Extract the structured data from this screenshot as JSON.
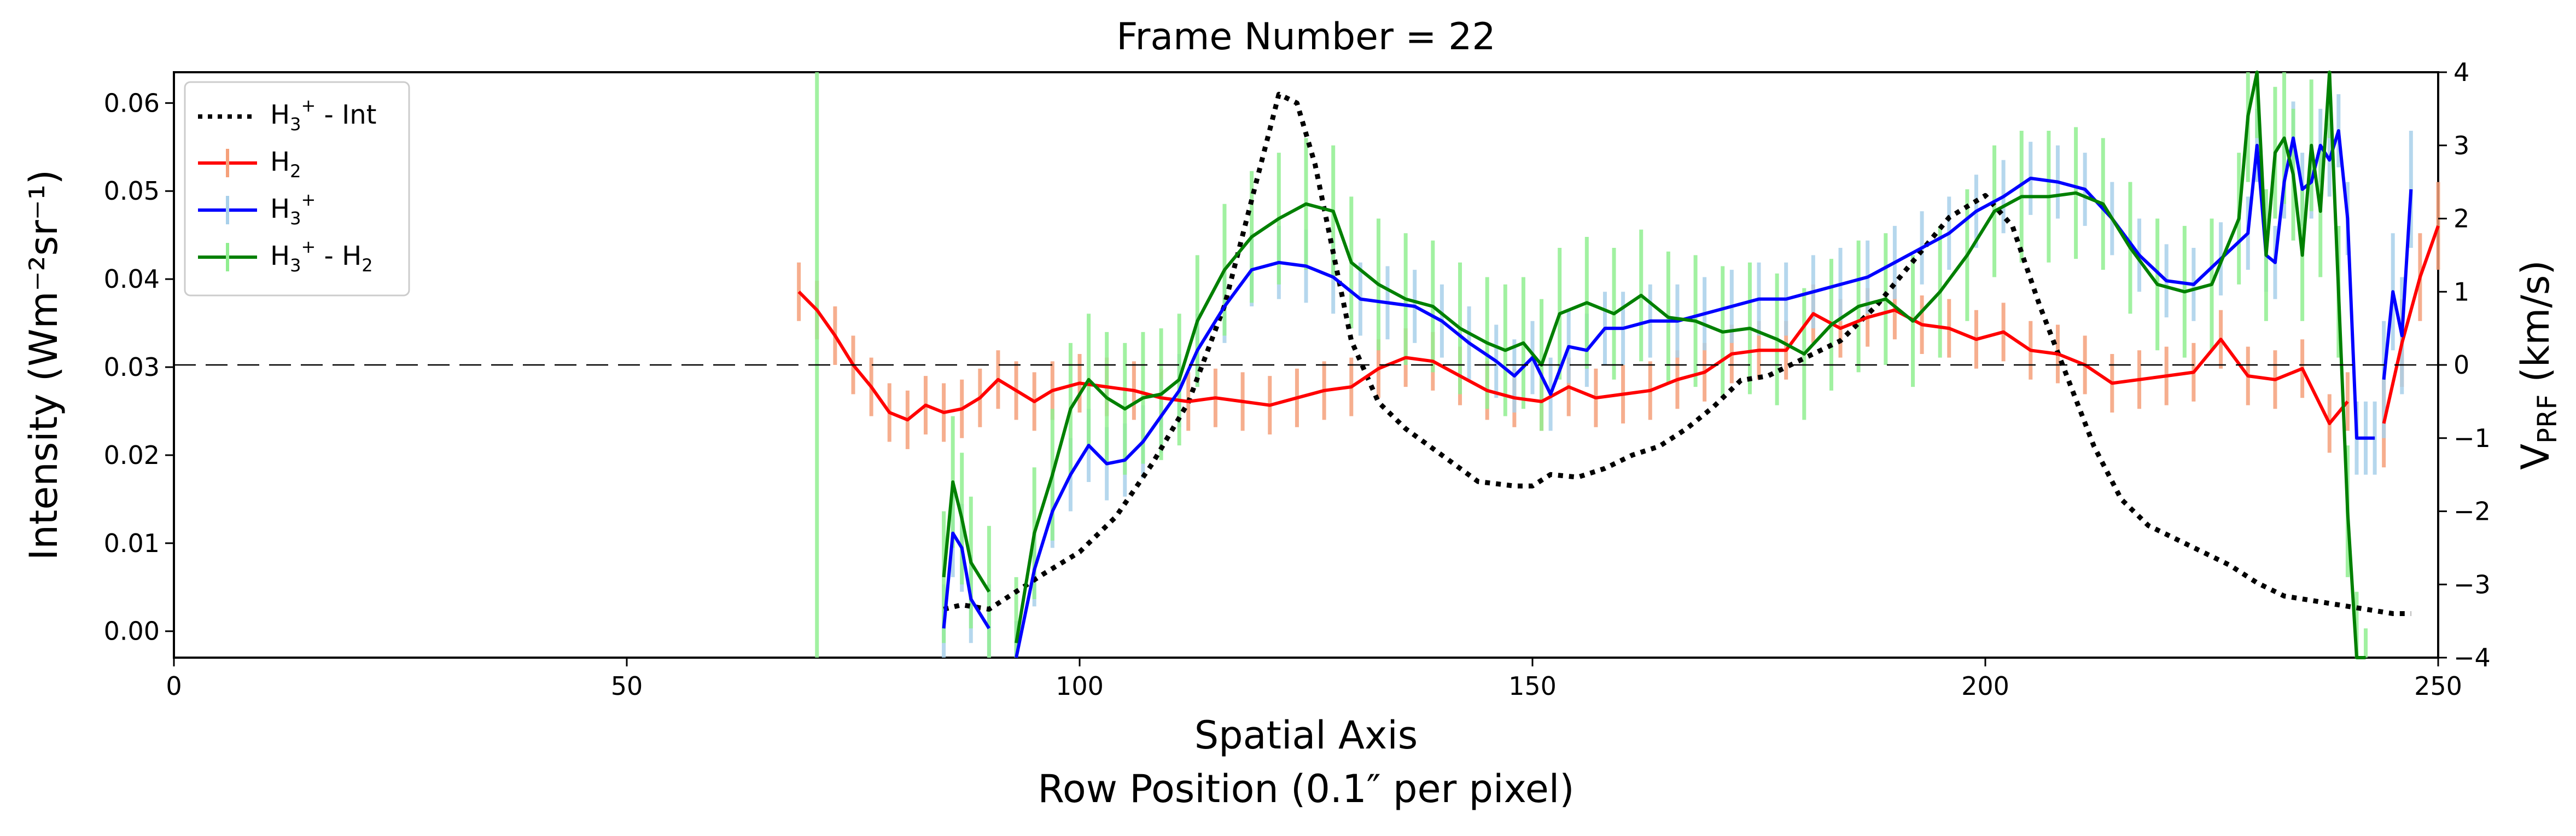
{
  "chart_data": {
    "type": "line",
    "title": "Frame Number = 22",
    "xlabel": "Spatial Axis",
    "xlabel2": "Row Position (0.1″ per pixel)",
    "ylabel": "Intensity (Wm⁻²sr⁻¹)",
    "ylabel_right": "V_PRF (km/s)",
    "xlim": [
      0,
      250
    ],
    "ylim": [
      -0.003,
      0.0635
    ],
    "ylim_right": [
      -4,
      4
    ],
    "xticks": [
      0,
      50,
      100,
      150,
      200,
      250
    ],
    "yticks": [
      "0.00",
      "0.01",
      "0.02",
      "0.03",
      "0.04",
      "0.05",
      "0.06"
    ],
    "yticks_right": [
      "−4",
      "−3",
      "−2",
      "−1",
      "0",
      "1",
      "2",
      "3",
      "4"
    ],
    "zero_line_right": 0,
    "legend_position": "top-left",
    "series": [
      {
        "name": "H3+ - Int",
        "label_text": "H₃⁺ - Int",
        "axis": "left",
        "style": "dotted",
        "color": "#000000",
        "x": [
          85,
          87,
          90,
          93,
          96,
          100,
          104,
          108,
          112,
          116,
          119,
          121,
          122,
          124,
          126,
          128,
          130,
          133,
          136,
          140,
          144,
          148,
          150,
          152,
          155,
          158,
          161,
          164,
          167,
          170,
          173,
          176,
          180,
          184,
          188,
          192,
          196,
          200,
          203,
          206,
          209,
          212,
          215,
          218,
          221,
          224,
          227,
          230,
          233,
          236,
          239,
          242,
          245,
          247
        ],
        "values": [
          0.0025,
          0.003,
          0.0025,
          0.0045,
          0.0065,
          0.009,
          0.013,
          0.019,
          0.026,
          0.037,
          0.049,
          0.057,
          0.061,
          0.06,
          0.053,
          0.043,
          0.033,
          0.026,
          0.023,
          0.02,
          0.017,
          0.0165,
          0.0165,
          0.0178,
          0.0175,
          0.0185,
          0.02,
          0.021,
          0.023,
          0.0255,
          0.0285,
          0.029,
          0.031,
          0.033,
          0.037,
          0.042,
          0.047,
          0.0495,
          0.046,
          0.037,
          0.029,
          0.021,
          0.015,
          0.012,
          0.0105,
          0.009,
          0.0075,
          0.0055,
          0.004,
          0.0035,
          0.003,
          0.0025,
          0.002,
          0.002
        ]
      },
      {
        "name": "H2",
        "label_text": "H₂",
        "axis": "right",
        "color": "#ff0000",
        "err_color": "#f5a07a",
        "x": [
          69,
          71,
          73,
          75,
          77,
          79,
          81,
          83,
          85,
          87,
          89,
          91,
          93,
          95,
          97,
          100,
          103,
          106,
          109,
          112,
          115,
          118,
          121,
          124,
          127,
          130,
          133,
          136,
          139,
          142,
          145,
          148,
          151,
          154,
          157,
          160,
          163,
          166,
          169,
          172,
          175,
          178,
          181,
          184,
          187,
          190,
          193,
          196,
          199,
          202,
          205,
          208,
          211,
          214,
          217,
          220,
          223,
          226,
          229,
          232,
          235,
          238,
          240
        ],
        "values": [
          1.0,
          0.75,
          0.4,
          0.0,
          -0.3,
          -0.65,
          -0.75,
          -0.55,
          -0.65,
          -0.6,
          -0.45,
          -0.2,
          -0.35,
          -0.5,
          -0.35,
          -0.25,
          -0.3,
          -0.35,
          -0.45,
          -0.5,
          -0.45,
          -0.5,
          -0.55,
          -0.45,
          -0.35,
          -0.3,
          -0.05,
          0.1,
          0.05,
          -0.15,
          -0.35,
          -0.45,
          -0.5,
          -0.3,
          -0.45,
          -0.4,
          -0.35,
          -0.2,
          -0.1,
          0.15,
          0.2,
          0.2,
          0.7,
          0.5,
          0.65,
          0.75,
          0.55,
          0.5,
          0.35,
          0.45,
          0.2,
          0.15,
          0.0,
          -0.25,
          -0.2,
          -0.15,
          -0.1,
          0.35,
          -0.15,
          -0.2,
          -0.05,
          -0.8,
          -0.5
        ],
        "errors": [
          0.4,
          0.4,
          0.4,
          0.4,
          0.4,
          0.4,
          0.4,
          0.4,
          0.4,
          0.4,
          0.4,
          0.4,
          0.4,
          0.4,
          0.4,
          0.4,
          0.4,
          0.4,
          0.4,
          0.4,
          0.4,
          0.4,
          0.4,
          0.4,
          0.4,
          0.4,
          0.4,
          0.4,
          0.4,
          0.4,
          0.4,
          0.4,
          0.4,
          0.4,
          0.4,
          0.4,
          0.4,
          0.4,
          0.4,
          0.4,
          0.4,
          0.4,
          0.4,
          0.4,
          0.4,
          0.4,
          0.4,
          0.4,
          0.4,
          0.4,
          0.4,
          0.4,
          0.4,
          0.4,
          0.4,
          0.4,
          0.4,
          0.4,
          0.4,
          0.4,
          0.4,
          0.4,
          0.4
        ]
      },
      {
        "name": "H2 end segment",
        "axis": "right",
        "color": "#ff0000",
        "err_color": "#f5a07a",
        "x": [
          244,
          246,
          248,
          250
        ],
        "values": [
          -0.8,
          0.3,
          1.2,
          1.9
        ],
        "errors": [
          0.6,
          0.6,
          0.6,
          0.6
        ]
      },
      {
        "name": "H3+",
        "label_text": "H₃⁺",
        "axis": "right",
        "color": "#0000ff",
        "err_color": "#a8d0ea",
        "x": [
          85,
          86,
          87,
          88,
          90
        ],
        "values": [
          -3.6,
          -2.3,
          -2.5,
          -3.2,
          -3.6
        ],
        "errors": [
          0.6,
          0.6,
          0.6,
          0.6,
          0.6
        ]
      },
      {
        "name": "H3+ main",
        "axis": "right",
        "color": "#0000ff",
        "err_color": "#a8d0ea",
        "x": [
          93,
          95,
          97,
          99,
          101,
          103,
          105,
          107,
          109,
          111,
          113,
          116,
          119,
          122,
          125,
          128,
          131,
          134,
          137,
          140,
          143,
          146,
          148,
          150,
          152,
          154,
          156,
          158,
          160,
          163,
          166,
          169,
          172,
          175,
          178,
          181,
          184,
          187,
          190,
          193,
          196,
          199,
          202,
          205,
          208,
          211,
          214,
          217,
          220,
          223,
          226,
          229,
          230,
          231,
          232,
          233,
          234,
          235,
          236,
          237,
          238,
          239,
          240,
          241,
          242,
          243
        ],
        "values": [
          -4.0,
          -2.8,
          -2.0,
          -1.5,
          -1.1,
          -1.35,
          -1.3,
          -1.05,
          -0.7,
          -0.35,
          0.2,
          0.8,
          1.3,
          1.4,
          1.35,
          1.2,
          0.9,
          0.85,
          0.8,
          0.6,
          0.3,
          0.05,
          -0.15,
          0.1,
          -0.4,
          0.25,
          0.2,
          0.5,
          0.5,
          0.6,
          0.6,
          0.7,
          0.8,
          0.9,
          0.9,
          1.0,
          1.1,
          1.2,
          1.4,
          1.6,
          1.8,
          2.1,
          2.3,
          2.55,
          2.5,
          2.4,
          2.0,
          1.5,
          1.15,
          1.1,
          1.45,
          1.8,
          3.0,
          1.5,
          1.4,
          2.5,
          3.1,
          2.4,
          2.5,
          3.0,
          2.8,
          3.2,
          2.0,
          -1.0,
          -1.0,
          -1.0
        ],
        "errors": [
          0.5,
          0.5,
          0.5,
          0.5,
          0.5,
          0.5,
          0.5,
          0.5,
          0.5,
          0.5,
          0.5,
          0.5,
          0.5,
          0.5,
          0.5,
          0.5,
          0.5,
          0.5,
          0.5,
          0.5,
          0.5,
          0.5,
          0.5,
          0.5,
          0.5,
          0.5,
          0.5,
          0.5,
          0.5,
          0.5,
          0.5,
          0.5,
          0.5,
          0.5,
          0.5,
          0.5,
          0.5,
          0.5,
          0.5,
          0.5,
          0.5,
          0.5,
          0.5,
          0.5,
          0.5,
          0.5,
          0.5,
          0.5,
          0.5,
          0.5,
          0.5,
          0.5,
          0.5,
          0.5,
          0.5,
          0.5,
          0.5,
          0.5,
          0.5,
          0.5,
          0.5,
          0.5,
          0.5,
          0.5,
          0.5,
          0.5
        ]
      },
      {
        "name": "H3+ end segment",
        "axis": "right",
        "color": "#0000ff",
        "err_color": "#a8d0ea",
        "x": [
          244,
          245,
          246,
          247
        ],
        "values": [
          -0.2,
          1.0,
          0.4,
          2.4
        ],
        "errors": [
          0.8,
          0.8,
          0.8,
          0.8
        ]
      },
      {
        "name": "H3+ - H2",
        "label_text": "H₃⁺ - H₂",
        "axis": "right",
        "color": "#008000",
        "err_color": "#90ee90",
        "x": [
          85,
          86,
          87,
          88,
          90
        ],
        "values": [
          -2.9,
          -1.6,
          -2.1,
          -2.7,
          -3.1
        ],
        "errors": [
          0.9,
          0.9,
          0.9,
          0.9,
          0.9
        ]
      },
      {
        "name": "H3+ - H2 main",
        "axis": "right",
        "color": "#008000",
        "err_color": "#90ee90",
        "x": [
          93,
          95,
          97,
          99,
          101,
          103,
          105,
          107,
          109,
          111,
          113,
          116,
          119,
          122,
          125,
          128,
          130,
          133,
          136,
          139,
          142,
          145,
          147,
          149,
          151,
          153,
          156,
          159,
          162,
          165,
          168,
          171,
          174,
          177,
          180,
          183,
          186,
          189,
          192,
          195,
          198,
          201,
          204,
          207,
          210,
          213,
          216,
          219,
          222,
          225,
          228,
          229,
          230,
          231,
          232,
          233,
          234,
          235,
          236,
          237,
          238,
          239,
          240,
          241,
          242
        ],
        "values": [
          -3.8,
          -2.3,
          -1.5,
          -0.6,
          -0.2,
          -0.45,
          -0.6,
          -0.45,
          -0.4,
          -0.2,
          0.6,
          1.3,
          1.75,
          2.0,
          2.2,
          2.1,
          1.4,
          1.1,
          0.9,
          0.8,
          0.5,
          0.3,
          0.2,
          0.3,
          0.0,
          0.7,
          0.85,
          0.7,
          0.95,
          0.65,
          0.6,
          0.45,
          0.5,
          0.35,
          0.15,
          0.55,
          0.8,
          0.9,
          0.6,
          1.0,
          1.5,
          2.1,
          2.3,
          2.3,
          2.35,
          2.2,
          1.6,
          1.1,
          1.0,
          1.1,
          2.0,
          3.4,
          4.0,
          1.5,
          2.9,
          3.1,
          2.6,
          1.5,
          3.0,
          2.1,
          4.0,
          1.0,
          -2.0,
          -4.0,
          -4.5
        ],
        "errors": [
          0.9,
          0.9,
          0.9,
          0.9,
          0.9,
          0.9,
          0.9,
          0.9,
          0.9,
          0.9,
          0.9,
          0.9,
          0.9,
          0.9,
          0.9,
          0.9,
          0.9,
          0.9,
          0.9,
          0.9,
          0.9,
          0.9,
          0.9,
          0.9,
          0.9,
          0.9,
          0.9,
          0.9,
          0.9,
          0.9,
          0.9,
          0.9,
          0.9,
          0.9,
          0.9,
          0.9,
          0.9,
          0.9,
          0.9,
          0.9,
          0.9,
          0.9,
          0.9,
          0.9,
          0.9,
          0.9,
          0.9,
          0.9,
          0.9,
          0.9,
          0.9,
          0.9,
          0.9,
          0.9,
          0.9,
          0.9,
          0.9,
          0.9,
          0.9,
          0.9,
          0.9,
          0.9,
          0.9,
          0.9,
          0.9
        ]
      },
      {
        "name": "H3+ - H2 spike",
        "axis": "right",
        "color": "#008000",
        "err_color": "#90ee90",
        "x": [
          71
        ],
        "values": [
          0.0
        ],
        "errors": [
          4.0
        ]
      }
    ]
  }
}
